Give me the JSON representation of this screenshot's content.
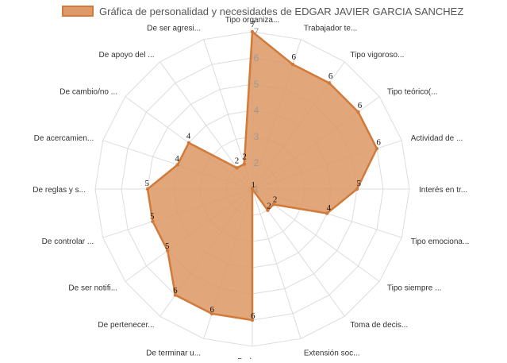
{
  "chart_data": {
    "type": "radar",
    "legend": {
      "label": "Gráfica de personalidad y necesidades de EDGAR JAVIER GARCIA SANCHEZ",
      "position": "top",
      "color": "#d17a3a",
      "fill": "#dd9a68"
    },
    "axes": [
      "Tipo organiza...",
      "Trabajador te...",
      "Tipo vigoroso...",
      "Tipo teórico(...",
      "Actividad de ...",
      "Interés en tr...",
      "Tipo emociona...",
      "Tipo siempre ...",
      "Toma de decis...",
      "Extensión soc...",
      "De logro",
      "De terminar u...",
      "De pertenecer...",
      "De ser notifi...",
      "De controlar ...",
      "De reglas y s...",
      "De acercamien...",
      "De cambio/no ...",
      "De apoyo del ...",
      "De ser agresi..."
    ],
    "series": [
      {
        "values": [
          7,
          6,
          6,
          6,
          6,
          5,
          4,
          2,
          2,
          1,
          6,
          6,
          6,
          5,
          5,
          5,
          4,
          4,
          2,
          2
        ]
      }
    ],
    "scale": {
      "min": 1,
      "max": 7,
      "ticks": [
        1,
        2,
        3,
        4,
        5,
        6,
        7
      ]
    },
    "grid": true
  }
}
